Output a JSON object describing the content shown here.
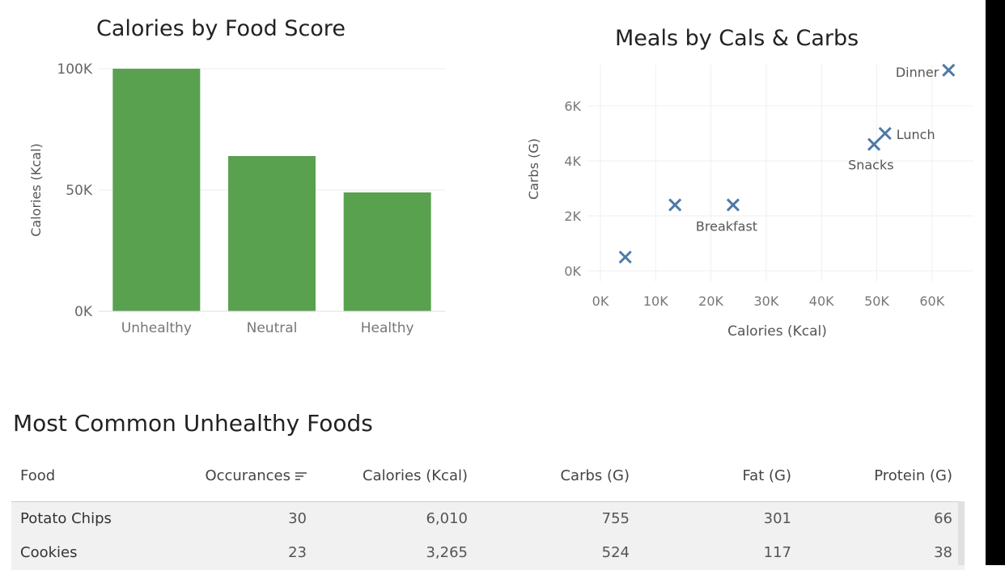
{
  "bar_chart": {
    "title": "Calories by Food Score",
    "ylabel": "Calories (Kcal)",
    "yticks": [
      "100K",
      "50K",
      "0K"
    ]
  },
  "scatter_chart": {
    "title": "Meals by Cals & Carbs",
    "xlabel": "Calories (Kcal)",
    "ylabel": "Carbs (G)",
    "xticks": [
      "0K",
      "10K",
      "20K",
      "30K",
      "40K",
      "50K",
      "60K"
    ],
    "yticks": [
      "6K",
      "4K",
      "2K",
      "0K"
    ]
  },
  "chart_data": [
    {
      "type": "bar",
      "title": "Calories by Food Score",
      "xlabel": "",
      "ylabel": "Calories (Kcal)",
      "categories": [
        "Unhealthy",
        "Neutral",
        "Healthy"
      ],
      "values": [
        100000,
        64000,
        49000
      ],
      "ylim": [
        0,
        100000
      ],
      "color": "#59a14f",
      "grid": true
    },
    {
      "type": "scatter",
      "title": "Meals by Cals & Carbs",
      "xlabel": "Calories (Kcal)",
      "ylabel": "Carbs (G)",
      "xlim": [
        0,
        68000
      ],
      "ylim": [
        0,
        8000
      ],
      "color": "#4e79a7",
      "marker": "x",
      "grid": true,
      "points": [
        {
          "x": 63000,
          "y": 7300,
          "label": "Dinner"
        },
        {
          "x": 51500,
          "y": 5000,
          "label": "Lunch"
        },
        {
          "x": 49500,
          "y": 4600,
          "label": "Snacks"
        },
        {
          "x": 24000,
          "y": 2400,
          "label": "Breakfast"
        },
        {
          "x": 13500,
          "y": 2400,
          "label": ""
        },
        {
          "x": 4500,
          "y": 500,
          "label": ""
        }
      ]
    }
  ],
  "table": {
    "title": "Most Common Unhealthy Foods",
    "headers": [
      "Food",
      "Occurances",
      "Calories (Kcal)",
      "Carbs (G)",
      "Fat (G)",
      "Protein (G)"
    ],
    "sort_icon": "sort-descending-icon",
    "rows": [
      [
        "Potato Chips",
        "30",
        "6,010",
        "755",
        "301",
        "66"
      ],
      [
        "Cookies",
        "23",
        "3,265",
        "524",
        "117",
        "38"
      ]
    ]
  }
}
